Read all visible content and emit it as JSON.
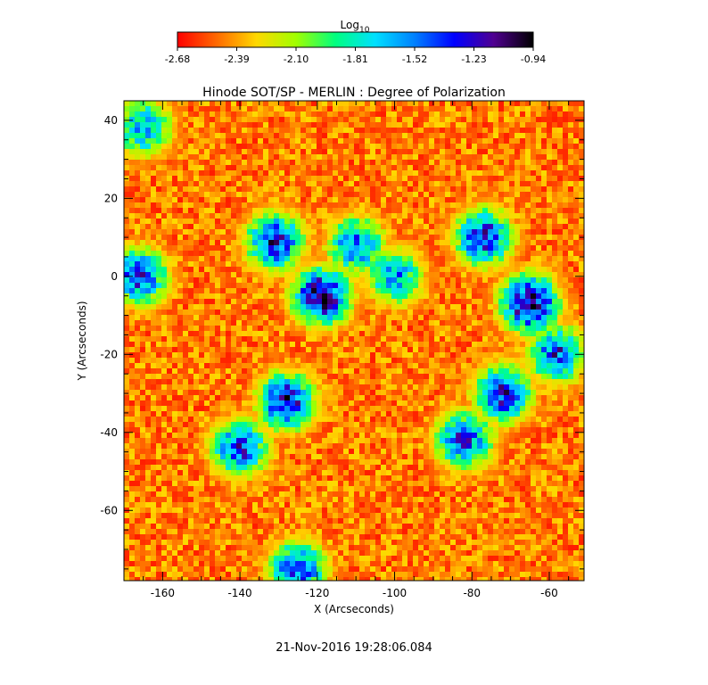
{
  "chart_data": {
    "type": "heatmap",
    "title": "Hinode SOT/SP - MERLIN : Degree of Polarization",
    "xlabel": "X (Arcseconds)",
    "ylabel": "Y (Arcseconds)",
    "xlim": [
      -170,
      -51
    ],
    "ylim": [
      -78,
      45
    ],
    "x_ticks": [
      "-160",
      "-140",
      "-120",
      "-100",
      "-80",
      "-60"
    ],
    "x_tick_values": [
      -160,
      -140,
      -120,
      -100,
      -80,
      -60
    ],
    "y_ticks": [
      "40",
      "20",
      "0",
      "-20",
      "-40",
      "-60"
    ],
    "y_tick_values": [
      40,
      20,
      0,
      -20,
      -40,
      -60
    ],
    "colorbar": {
      "label_base": "Log",
      "label_sub": "10",
      "range": [
        -2.68,
        -0.94
      ],
      "ticks": [
        "-2.68",
        "-2.39",
        "-2.10",
        "-1.81",
        "-1.52",
        "-1.23",
        "-0.94"
      ],
      "colormap": [
        "#ff0000",
        "#ff6a00",
        "#ffd800",
        "#a0ff00",
        "#00ff80",
        "#00e0ff",
        "#0080ff",
        "#0000ff",
        "#500090",
        "#000000"
      ]
    },
    "value_note": "",
    "high_polarization_regions": [
      {
        "x": -119,
        "y": -5,
        "level": -1.0
      },
      {
        "x": -128,
        "y": -32,
        "level": -1.15
      },
      {
        "x": -140,
        "y": -44,
        "level": -1.3
      },
      {
        "x": -131,
        "y": 9,
        "level": -1.2
      },
      {
        "x": -65,
        "y": -7,
        "level": -1.0
      },
      {
        "x": -72,
        "y": -30,
        "level": -1.2
      },
      {
        "x": -82,
        "y": -42,
        "level": -1.3
      },
      {
        "x": -77,
        "y": 10,
        "level": -1.2
      },
      {
        "x": -166,
        "y": 0,
        "level": -1.3
      },
      {
        "x": -110,
        "y": 8,
        "level": -1.4
      },
      {
        "x": -100,
        "y": 0,
        "level": -1.5
      },
      {
        "x": -165,
        "y": 38,
        "level": -1.5
      },
      {
        "x": -125,
        "y": -75,
        "level": -1.3
      },
      {
        "x": -58,
        "y": -20,
        "level": -1.3
      }
    ]
  },
  "footer": {
    "timestamp": "21-Nov-2016 19:28:06.084"
  }
}
